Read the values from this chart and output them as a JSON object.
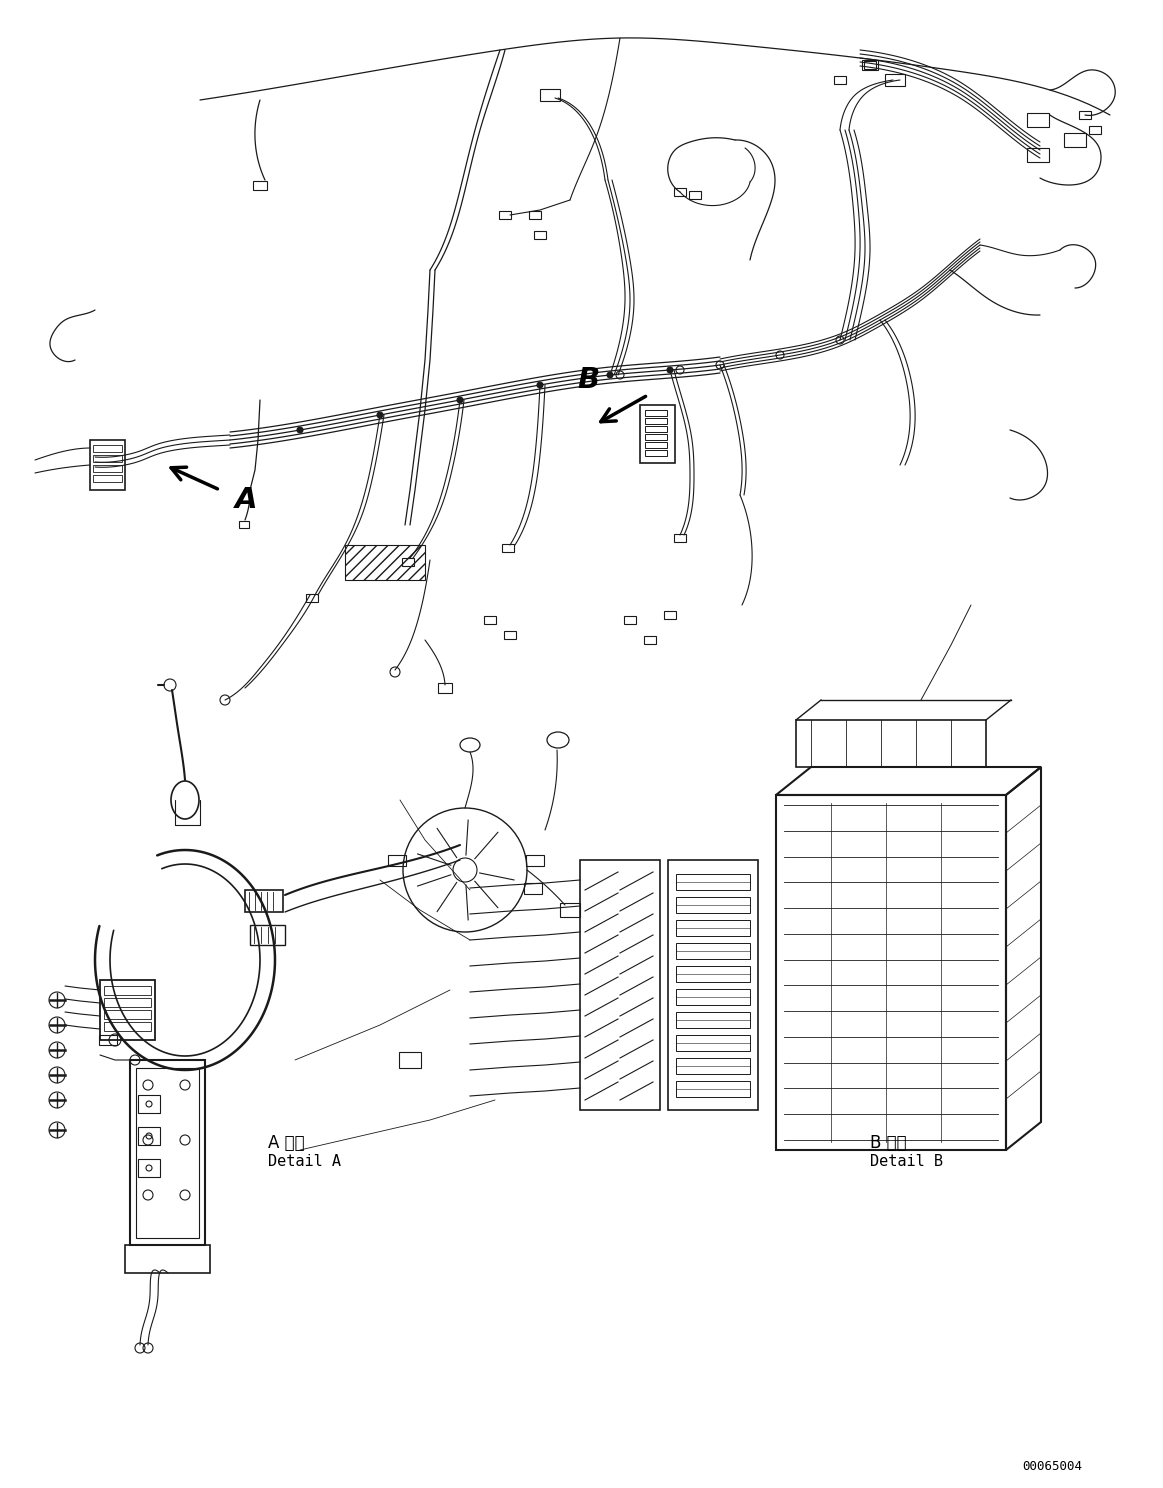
{
  "figsize": [
    11.63,
    14.88
  ],
  "dpi": 100,
  "bg": "#ffffff",
  "lc": "#1a1a1a",
  "tc": "#000000",
  "part_number": "00065004",
  "label_A": "A",
  "label_B": "B",
  "detail_A_jp": "A 詳細",
  "detail_A_en": "Detail A",
  "detail_B_jp": "B 詳細",
  "detail_B_en": "Detail B"
}
